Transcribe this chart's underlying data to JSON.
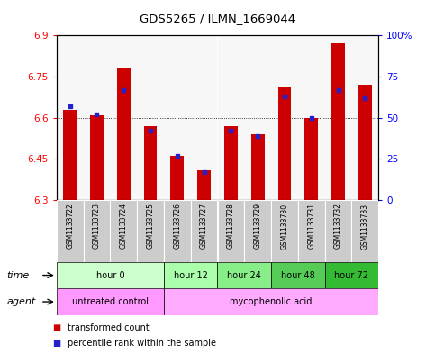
{
  "title": "GDS5265 / ILMN_1669044",
  "samples": [
    "GSM1133722",
    "GSM1133723",
    "GSM1133724",
    "GSM1133725",
    "GSM1133726",
    "GSM1133727",
    "GSM1133728",
    "GSM1133729",
    "GSM1133730",
    "GSM1133731",
    "GSM1133732",
    "GSM1133733"
  ],
  "transformed_counts": [
    6.63,
    6.61,
    6.78,
    6.57,
    6.46,
    6.41,
    6.57,
    6.54,
    6.71,
    6.6,
    6.87,
    6.72
  ],
  "percentile_ranks": [
    57,
    52,
    67,
    42,
    27,
    17,
    42,
    39,
    63,
    50,
    67,
    62
  ],
  "ylim_left": [
    6.3,
    6.9
  ],
  "ylim_right": [
    0,
    100
  ],
  "yticks_left": [
    6.3,
    6.45,
    6.6,
    6.75,
    6.9
  ],
  "yticks_right": [
    0,
    25,
    50,
    75,
    100
  ],
  "ytick_labels_right": [
    "0",
    "25",
    "50",
    "75",
    "100%"
  ],
  "bar_color": "#cc0000",
  "dot_color": "#2222cc",
  "bar_bottom": 6.3,
  "time_groups": [
    {
      "label": "hour 0",
      "start": 0,
      "end": 3,
      "color": "#ccffcc"
    },
    {
      "label": "hour 12",
      "start": 4,
      "end": 5,
      "color": "#aaffaa"
    },
    {
      "label": "hour 24",
      "start": 6,
      "end": 7,
      "color": "#88ee88"
    },
    {
      "label": "hour 48",
      "start": 8,
      "end": 9,
      "color": "#55cc55"
    },
    {
      "label": "hour 72",
      "start": 10,
      "end": 11,
      "color": "#33bb33"
    }
  ],
  "agent_groups": [
    {
      "label": "untreated control",
      "start": 0,
      "end": 3,
      "color": "#ff99ff"
    },
    {
      "label": "mycophenolic acid",
      "start": 4,
      "end": 11,
      "color": "#ffaaff"
    }
  ],
  "legend_bar_color": "#cc0000",
  "legend_dot_color": "#2222cc",
  "legend_bar_label": "transformed count",
  "legend_dot_label": "percentile rank within the sample",
  "bar_width": 0.5,
  "sample_bg_color": "#cccccc",
  "sample_sep_color": "#ffffff"
}
